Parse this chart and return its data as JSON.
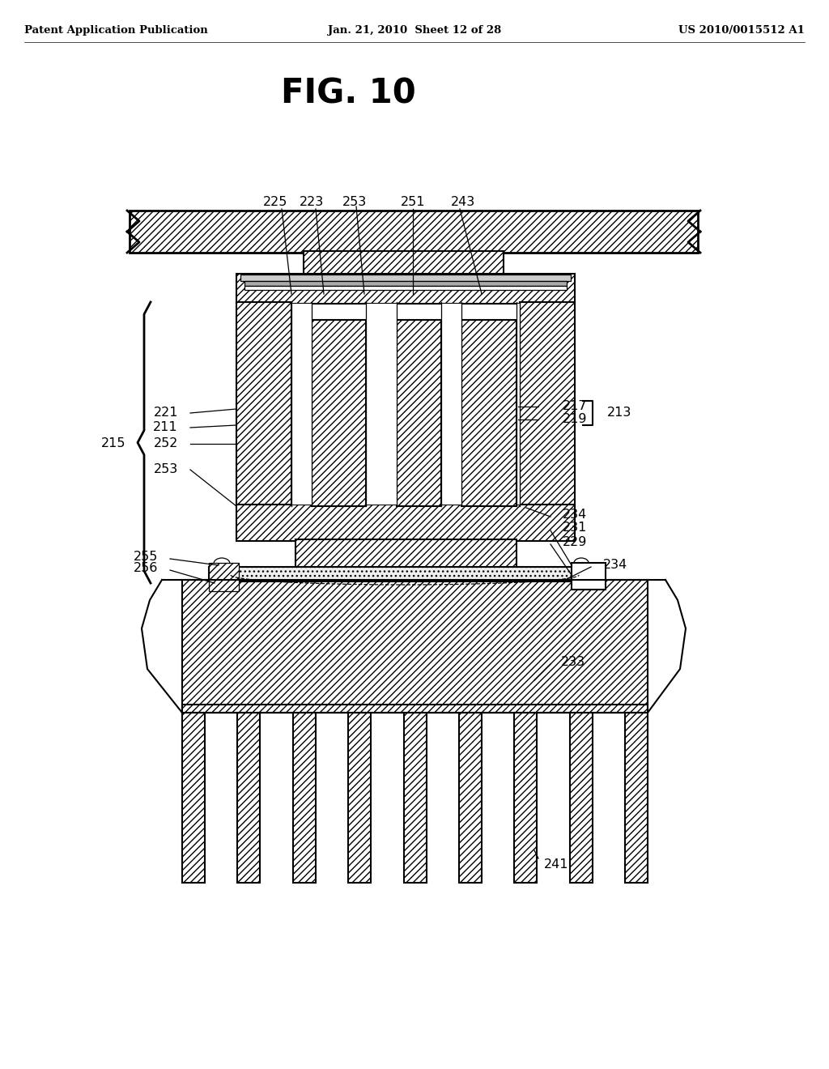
{
  "header_left": "Patent Application Publication",
  "header_mid": "Jan. 21, 2010  Sheet 12 of 28",
  "header_right": "US 2010/0015512 A1",
  "fig_title": "FIG. 10",
  "bg_color": "#ffffff"
}
